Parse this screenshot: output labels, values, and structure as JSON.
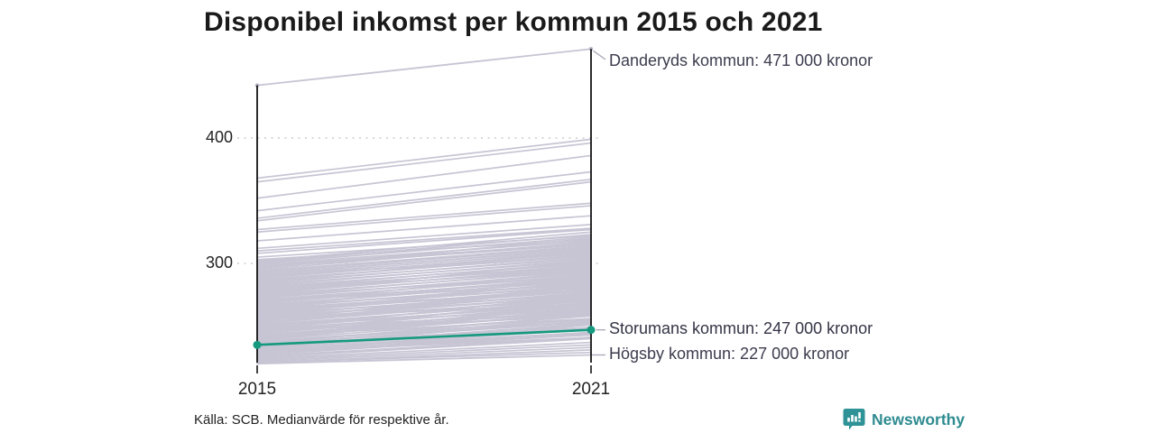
{
  "title": "Disponibel inkomst per kommun 2015 och 2021",
  "footer": {
    "source": "Källa: SCB. Medianvärde för respektive år.",
    "brand": "Newsworthy"
  },
  "colors": {
    "accent_teal": "#15997f",
    "line_gray": "#c7c5d4",
    "axis": "#151515",
    "grid": "#cccccc",
    "annotation_text": "#3c3c4e",
    "title_text": "#1a1a1a",
    "brand_teal": "#2e8b90",
    "connector_gray": "#a9a7b8"
  },
  "icons": {
    "brand_icon": "bar-chart-speech-bubble"
  },
  "chart_data": {
    "type": "line",
    "subtype": "slope",
    "x": [
      2015,
      2021
    ],
    "x_labels": [
      "2015",
      "2021"
    ],
    "y_ticks": [
      400,
      300
    ],
    "y_tick_labels": [
      "400",
      "300"
    ],
    "ylim": [
      215,
      485
    ],
    "grid": "dotted-horizontal",
    "legend": "none",
    "unit_note": "values in thousands of kronor, shown as '000 kronor' in annotations",
    "series": [
      {
        "name": "Danderyds kommun",
        "values": [
          442,
          471
        ],
        "style": "background",
        "annotation": "Danderyds kommun: 471 000 kronor"
      },
      {
        "name": "Storumans kommun",
        "values": [
          235,
          247
        ],
        "style": "highlight",
        "annotation": "Storumans kommun: 247 000 kronor"
      },
      {
        "name": "Högsby kommun",
        "values": [
          220,
          227
        ],
        "style": "background",
        "annotation": "Högsby kommun: 227 000 kronor"
      }
    ],
    "background_lines": [
      [
        368,
        399
      ],
      [
        365,
        396
      ],
      [
        352,
        386
      ],
      [
        342,
        373
      ],
      [
        336,
        367
      ],
      [
        334,
        365
      ],
      [
        327,
        348
      ],
      [
        325,
        346
      ],
      [
        318,
        338
      ],
      [
        312,
        331
      ],
      [
        310,
        328
      ],
      [
        308,
        327
      ],
      [
        305,
        322
      ],
      [
        303,
        319
      ],
      [
        302,
        325
      ],
      [
        301,
        323
      ],
      [
        300,
        321
      ],
      [
        299,
        318
      ],
      [
        298,
        316
      ],
      [
        297,
        315
      ],
      [
        296,
        320
      ],
      [
        295,
        317
      ],
      [
        294,
        314
      ],
      [
        293,
        313
      ],
      [
        292,
        311
      ],
      [
        291,
        312
      ],
      [
        290,
        310
      ],
      [
        289,
        308
      ],
      [
        288,
        309
      ],
      [
        287,
        306
      ],
      [
        286,
        307
      ],
      [
        285,
        304
      ],
      [
        284,
        305
      ],
      [
        283,
        302
      ],
      [
        282,
        303
      ],
      [
        281,
        300
      ],
      [
        280,
        301
      ],
      [
        279,
        298
      ],
      [
        278,
        299
      ],
      [
        277,
        296
      ],
      [
        276,
        297
      ],
      [
        275,
        294
      ],
      [
        274,
        295
      ],
      [
        273,
        292
      ],
      [
        272,
        293
      ],
      [
        271,
        290
      ],
      [
        270,
        291
      ],
      [
        269,
        288
      ],
      [
        268,
        289
      ],
      [
        267,
        286
      ],
      [
        266,
        287
      ],
      [
        265,
        284
      ],
      [
        264,
        285
      ],
      [
        263,
        282
      ],
      [
        262,
        283
      ],
      [
        261,
        280
      ],
      [
        260,
        281
      ],
      [
        259,
        278
      ],
      [
        258,
        279
      ],
      [
        257,
        276
      ],
      [
        256,
        277
      ],
      [
        255,
        274
      ],
      [
        254,
        275
      ],
      [
        253,
        272
      ],
      [
        252,
        273
      ],
      [
        251,
        270
      ],
      [
        250,
        271
      ],
      [
        249,
        268
      ],
      [
        248,
        269
      ],
      [
        247,
        266
      ],
      [
        246,
        267
      ],
      [
        245,
        264
      ],
      [
        244,
        265
      ],
      [
        243,
        262
      ],
      [
        242,
        263
      ],
      [
        241,
        260
      ],
      [
        240,
        261
      ],
      [
        239,
        258
      ],
      [
        238,
        255
      ],
      [
        237,
        256
      ],
      [
        236,
        253
      ],
      [
        235,
        254
      ],
      [
        234,
        251
      ],
      [
        233,
        252
      ],
      [
        232,
        249
      ],
      [
        231,
        247
      ],
      [
        230,
        248
      ],
      [
        229,
        245
      ],
      [
        228,
        243
      ],
      [
        227,
        244
      ],
      [
        226,
        241
      ],
      [
        225,
        240
      ],
      [
        224,
        237
      ],
      [
        223,
        235
      ],
      [
        222,
        233
      ],
      [
        221,
        231
      ],
      [
        221,
        229
      ],
      [
        256,
        268
      ],
      [
        252,
        281
      ],
      [
        248,
        261
      ],
      [
        244,
        272
      ],
      [
        240,
        268
      ],
      [
        236,
        259
      ],
      [
        232,
        256
      ],
      [
        246,
        258
      ],
      [
        250,
        267
      ],
      [
        254,
        283
      ],
      [
        258,
        273
      ],
      [
        262,
        278
      ],
      [
        266,
        281
      ],
      [
        270,
        287
      ],
      [
        274,
        290
      ],
      [
        278,
        295
      ],
      [
        242,
        256
      ],
      [
        238,
        253
      ],
      [
        234,
        247
      ],
      [
        230,
        243
      ],
      [
        228,
        251
      ],
      [
        260,
        286
      ],
      [
        264,
        278
      ],
      [
        268,
        294
      ],
      [
        247,
        275
      ],
      [
        243,
        259
      ],
      [
        239,
        264
      ],
      [
        235,
        249
      ],
      [
        231,
        245
      ],
      [
        229,
        241
      ],
      [
        290,
        306
      ],
      [
        285,
        310
      ],
      [
        280,
        297
      ],
      [
        275,
        302
      ],
      [
        270,
        283
      ],
      [
        265,
        290
      ],
      [
        260,
        275
      ],
      [
        255,
        271
      ],
      [
        250,
        264
      ],
      [
        245,
        261
      ]
    ]
  }
}
